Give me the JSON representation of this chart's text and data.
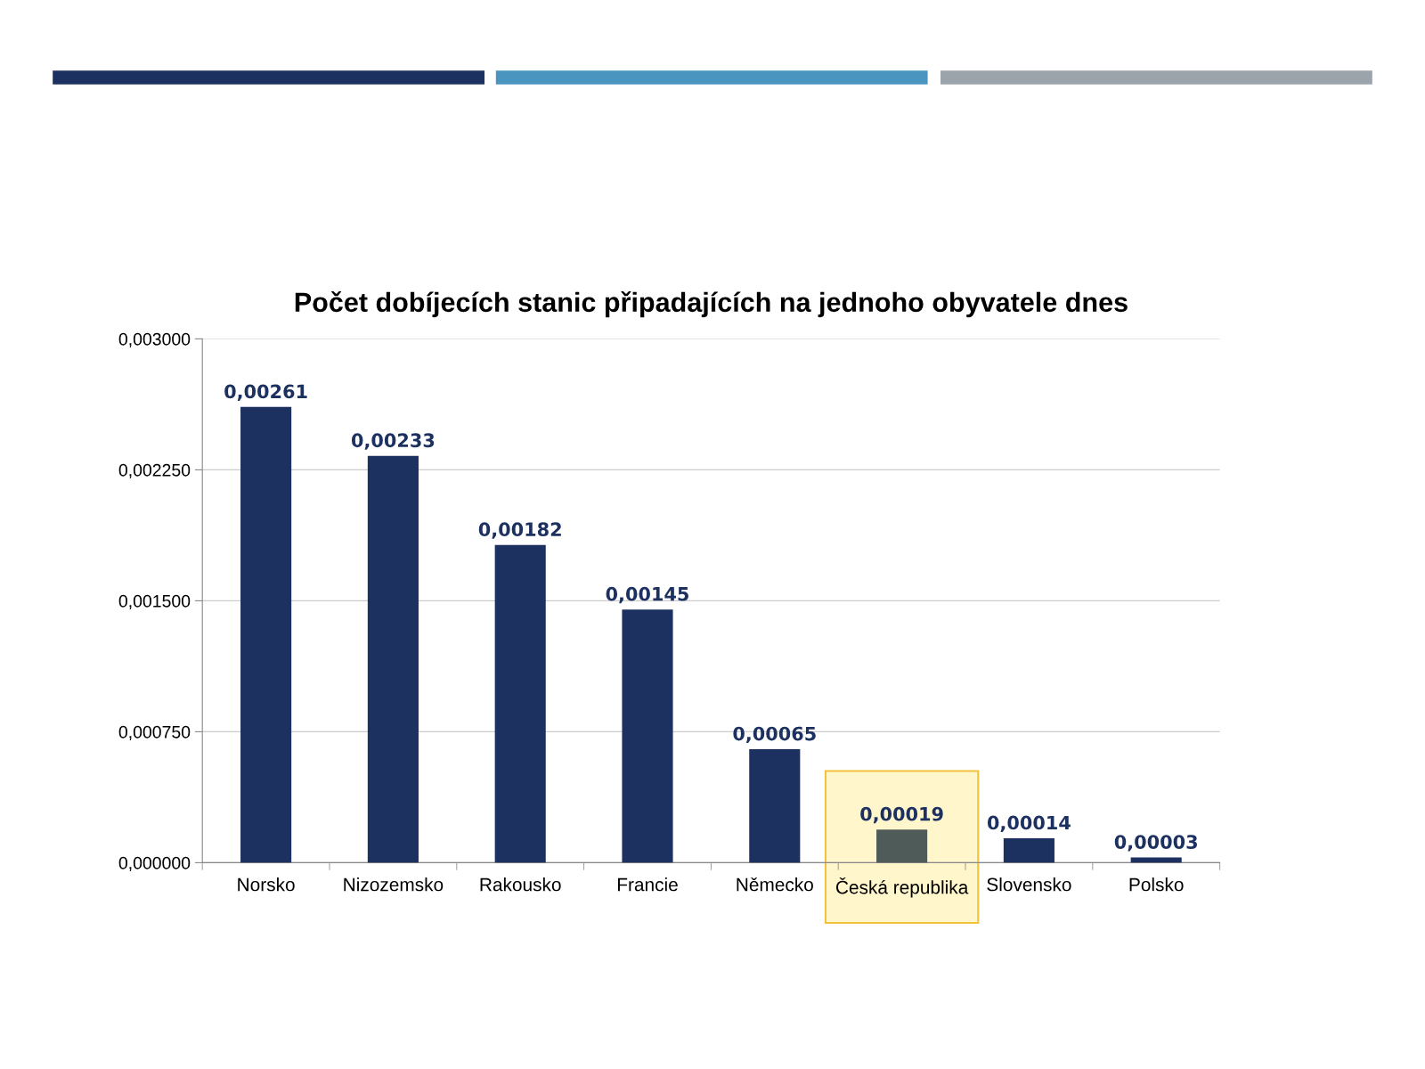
{
  "chart_data": {
    "type": "bar",
    "title": "Počet dobíjecích stanic připadajících na jednoho obyvatele dnes",
    "categories": [
      "Norsko",
      "Nizozemsko",
      "Rakousko",
      "Francie",
      "Německo",
      "Česká republika",
      "Slovensko",
      "Polsko"
    ],
    "values": [
      0.00261,
      0.00233,
      0.00182,
      0.00145,
      0.00065,
      0.00019,
      0.00014,
      3e-05
    ],
    "colors": [
      "#1c3160",
      "#1c3160",
      "#1c3160",
      "#1c3160",
      "#1c3160",
      "#4f5b58",
      "#1c3160",
      "#1c3160"
    ],
    "value_labels": [
      "0,00261",
      "0,00233",
      "0,00182",
      "0,00145",
      "0,00065",
      "0,00019",
      "0,00014",
      "0,00003"
    ],
    "ylim": [
      0,
      0.003
    ],
    "yticks": [
      {
        "value": 0,
        "label": "0,000000"
      },
      {
        "value": 0.00075,
        "label": "0,000750"
      },
      {
        "value": 0.0015,
        "label": "0,001500"
      },
      {
        "value": 0.00225,
        "label": "0,002250"
      },
      {
        "value": 0.003,
        "label": "0,003000"
      }
    ],
    "grid": "y",
    "bands": [
      {
        "axis": "x",
        "from": "Česká republika",
        "to": "Česká republika",
        "color": "#fff6cc"
      }
    ]
  }
}
